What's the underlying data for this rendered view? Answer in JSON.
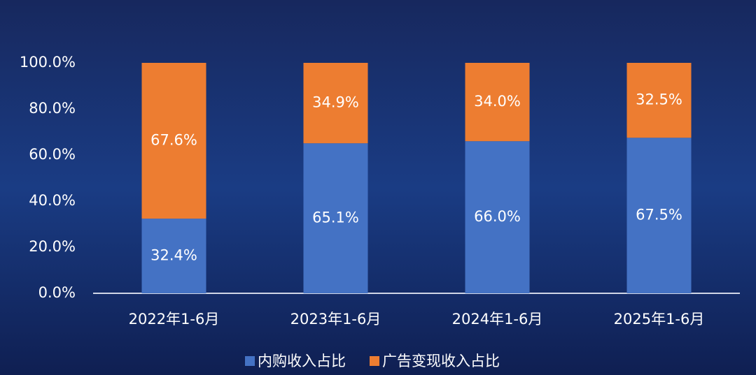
{
  "chart_data": {
    "type": "stacked-bar",
    "categories": [
      "2022年1-6月",
      "2023年1-6月",
      "2024年1-6月",
      "2025年1-6月"
    ],
    "series": [
      {
        "name": "内购收入占比",
        "color": "#4472c4",
        "values": [
          32.4,
          65.1,
          66.0,
          67.5
        ],
        "value_labels": [
          "32.4%",
          "65.1%",
          "66.0%",
          "67.5%"
        ]
      },
      {
        "name": "广告变现收入占比",
        "color": "#ed7d31",
        "values": [
          67.6,
          34.9,
          34.0,
          32.5
        ],
        "value_labels": [
          "67.6%",
          "34.9%",
          "34.0%",
          "32.5%"
        ]
      }
    ],
    "ylim": [
      0,
      100
    ],
    "yticks": [
      {
        "value": 0,
        "label": "0.0%"
      },
      {
        "value": 20,
        "label": "20.0%"
      },
      {
        "value": 40,
        "label": "40.0%"
      },
      {
        "value": 60,
        "label": "60.0%"
      },
      {
        "value": 80,
        "label": "80.0%"
      },
      {
        "value": 100,
        "label": "100.0%"
      }
    ],
    "grid": false
  }
}
